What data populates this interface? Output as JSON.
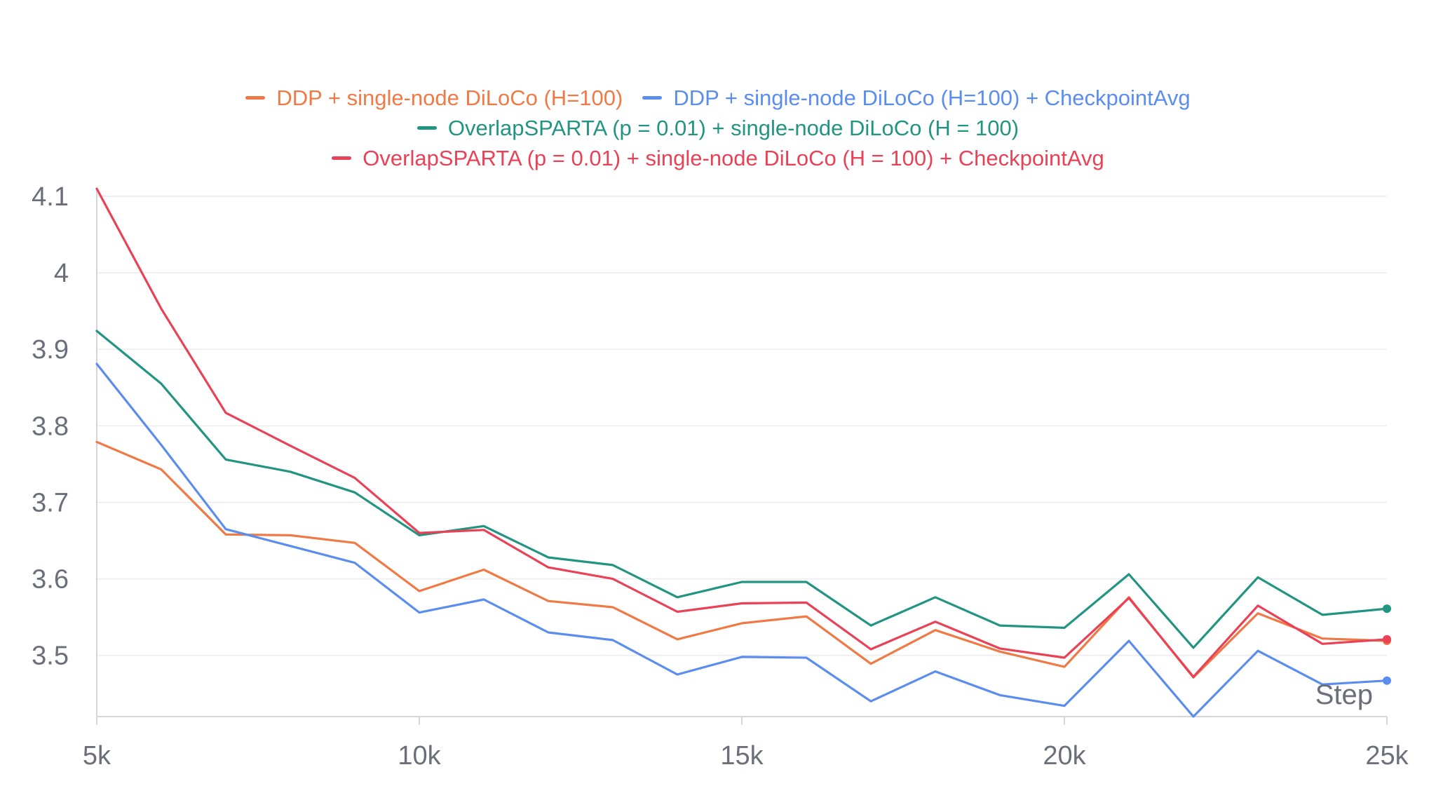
{
  "chart_data": {
    "type": "line",
    "xlabel": "Step",
    "ylabel": "",
    "xlim": [
      5000,
      25000
    ],
    "ylim": [
      3.42,
      4.1
    ],
    "x_ticks": [
      {
        "value": 5000,
        "label": "5k"
      },
      {
        "value": 10000,
        "label": "10k"
      },
      {
        "value": 15000,
        "label": "15k"
      },
      {
        "value": 20000,
        "label": "20k"
      },
      {
        "value": 25000,
        "label": "25k"
      }
    ],
    "y_ticks": [
      {
        "value": 3.5,
        "label": "3.5"
      },
      {
        "value": 3.6,
        "label": "3.6"
      },
      {
        "value": 3.7,
        "label": "3.7"
      },
      {
        "value": 3.8,
        "label": "3.8"
      },
      {
        "value": 3.9,
        "label": "3.9"
      },
      {
        "value": 4.0,
        "label": "4"
      },
      {
        "value": 4.1,
        "label": "4.1"
      }
    ],
    "grid": true,
    "legend_position": "top-center",
    "x": [
      5000,
      6000,
      7000,
      8000,
      9000,
      10000,
      11000,
      12000,
      13000,
      14000,
      15000,
      16000,
      17000,
      18000,
      19000,
      20000,
      21000,
      22000,
      23000,
      24000,
      25000
    ],
    "series": [
      {
        "name": "DDP + single-node DiLoCo (H=100)",
        "color": "#ef7a45",
        "values": [
          3.779,
          3.743,
          3.658,
          3.657,
          3.647,
          3.584,
          3.612,
          3.571,
          3.563,
          3.521,
          3.542,
          3.551,
          3.489,
          3.533,
          3.505,
          3.485,
          3.576,
          3.471,
          3.555,
          3.522,
          3.519
        ]
      },
      {
        "name": "DDP + single-node DiLoCo (H=100) + CheckpointAvg",
        "color": "#5b8def",
        "values": [
          3.881,
          3.775,
          3.665,
          3.643,
          3.621,
          3.556,
          3.573,
          3.53,
          3.52,
          3.475,
          3.498,
          3.497,
          3.44,
          3.479,
          3.448,
          3.434,
          3.519,
          3.42,
          3.506,
          3.462,
          3.467
        ]
      },
      {
        "name": "OverlapSPARTA (p = 0.01) + single-node DiLoCo (H = 100)",
        "color": "#229482",
        "values": [
          3.924,
          3.855,
          3.756,
          3.74,
          3.713,
          3.657,
          3.669,
          3.628,
          3.618,
          3.576,
          3.596,
          3.596,
          3.539,
          3.576,
          3.539,
          3.536,
          3.606,
          3.51,
          3.602,
          3.553,
          3.561
        ]
      },
      {
        "name": "OverlapSPARTA (p = 0.01) + single-node DiLoCo (H = 100) + CheckpointAvg",
        "color": "#e94257",
        "values": [
          4.11,
          3.953,
          3.817,
          3.774,
          3.732,
          3.66,
          3.664,
          3.615,
          3.6,
          3.557,
          3.568,
          3.569,
          3.508,
          3.544,
          3.509,
          3.497,
          3.575,
          3.472,
          3.565,
          3.515,
          3.521
        ]
      }
    ]
  }
}
